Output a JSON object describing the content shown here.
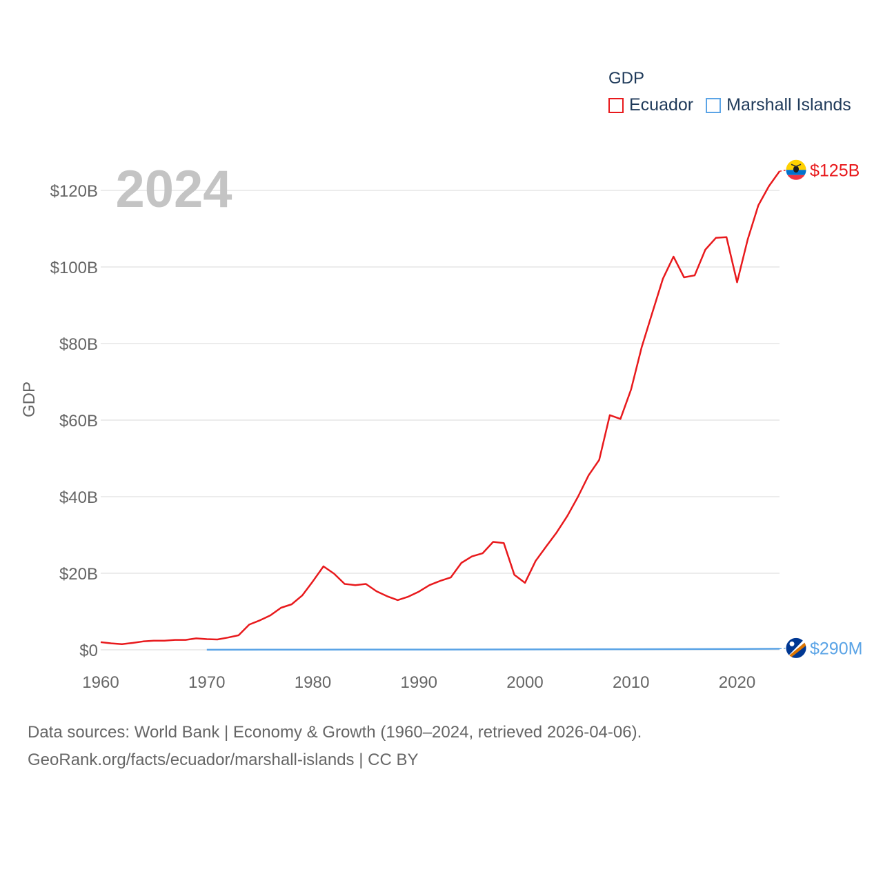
{
  "legend": {
    "title": "GDP",
    "items": [
      {
        "label": "Ecuador",
        "color": "#e8191c"
      },
      {
        "label": "Marshall Islands",
        "color": "#5ba4e6"
      }
    ]
  },
  "source": {
    "line1": "Data sources: World Bank | Economy & Growth (1960–2024, retrieved 2026-04-06).",
    "line2": "GeoRank.org/facts/ecuador/marshall-islands | CC BY"
  },
  "chart_data": {
    "type": "line",
    "year_label": "2024",
    "ylabel": "GDP",
    "xlabel": "",
    "xlim": [
      1960,
      2024
    ],
    "ylim": [
      0,
      125
    ],
    "x_ticks": [
      "1960",
      "1970",
      "1980",
      "1990",
      "2000",
      "2010",
      "2020"
    ],
    "y_ticks": [
      {
        "value": 0,
        "label": "$0"
      },
      {
        "value": 20,
        "label": "$20B"
      },
      {
        "value": 40,
        "label": "$40B"
      },
      {
        "value": 60,
        "label": "$60B"
      },
      {
        "value": 80,
        "label": "$80B"
      },
      {
        "value": 100,
        "label": "$100B"
      },
      {
        "value": 120,
        "label": "$120B"
      }
    ],
    "grid": true,
    "units": "billions of US$",
    "series": [
      {
        "name": "Ecuador",
        "color": "#e8191c",
        "end_label": "$125B",
        "x": [
          1960,
          1961,
          1962,
          1963,
          1964,
          1965,
          1966,
          1967,
          1968,
          1969,
          1970,
          1971,
          1972,
          1973,
          1974,
          1975,
          1976,
          1977,
          1978,
          1979,
          1980,
          1981,
          1982,
          1983,
          1984,
          1985,
          1986,
          1987,
          1988,
          1989,
          1990,
          1991,
          1992,
          1993,
          1994,
          1995,
          1996,
          1997,
          1998,
          1999,
          2000,
          2001,
          2002,
          2003,
          2004,
          2005,
          2006,
          2007,
          2008,
          2009,
          2010,
          2011,
          2012,
          2013,
          2014,
          2015,
          2016,
          2017,
          2018,
          2019,
          2020,
          2021,
          2022,
          2023,
          2024
        ],
        "values": [
          2.0,
          1.7,
          1.5,
          1.8,
          2.2,
          2.4,
          2.4,
          2.6,
          2.6,
          3.0,
          2.8,
          2.7,
          3.2,
          3.8,
          6.6,
          7.7,
          9.0,
          11.0,
          11.9,
          14.2,
          17.9,
          21.8,
          19.9,
          17.2,
          16.9,
          17.2,
          15.3,
          14.0,
          13.0,
          13.9,
          15.2,
          16.9,
          18.0,
          18.9,
          22.7,
          24.4,
          25.2,
          28.2,
          27.9,
          19.6,
          17.5,
          23.2,
          27.0,
          30.7,
          35.0,
          40.0,
          45.6,
          49.6,
          61.3,
          60.3,
          68.0,
          79.0,
          88.0,
          96.9,
          102.7,
          97.3,
          97.8,
          104.5,
          107.6,
          107.8,
          96.0,
          107.2,
          116.1,
          121.1,
          125.0
        ]
      },
      {
        "name": "Marshall Islands",
        "color": "#5ba4e6",
        "end_label": "$290M",
        "x": [
          1970,
          1980,
          1990,
          2000,
          2010,
          2020,
          2024
        ],
        "values": [
          0.02,
          0.05,
          0.08,
          0.11,
          0.16,
          0.24,
          0.29
        ]
      }
    ]
  }
}
